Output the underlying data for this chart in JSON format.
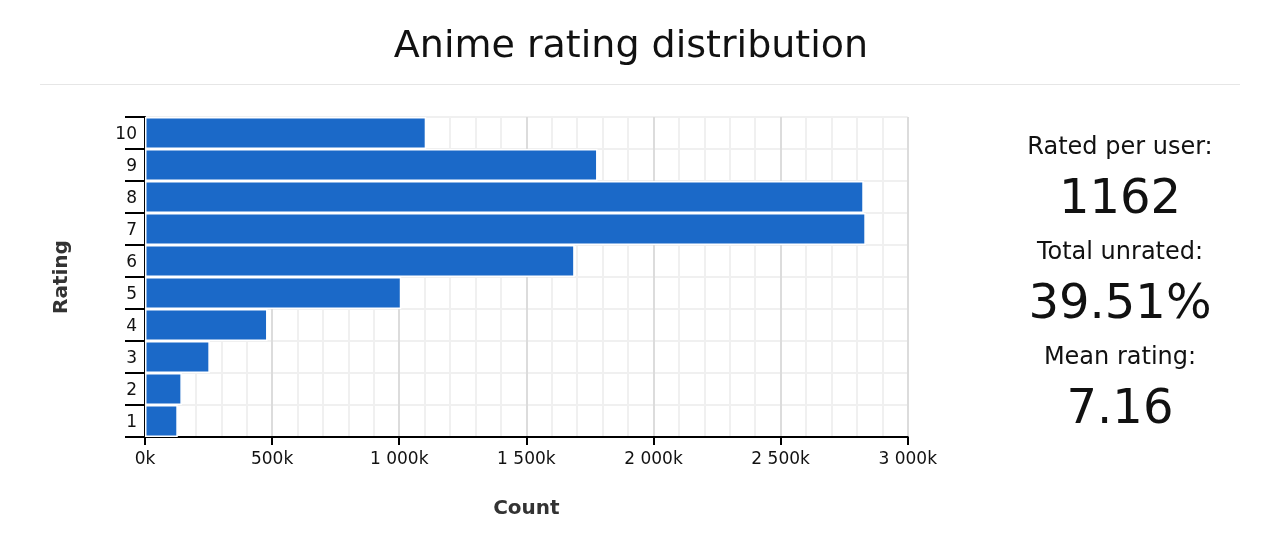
{
  "chart_data": [
    {
      "type": "bar",
      "title": "Anime rating distribution",
      "orientation": "horizontal",
      "xlabel": "Count",
      "ylabel": "Rating",
      "categories": [
        "10",
        "9",
        "8",
        "7",
        "6",
        "5",
        "4",
        "3",
        "2",
        "1"
      ],
      "values": [
        1106000,
        1780000,
        2827000,
        2835000,
        1690000,
        1008000,
        482000,
        255000,
        145000,
        129000
      ],
      "color": "#1b69c8",
      "xlim": [
        0,
        3000000
      ],
      "xticks": [
        {
          "value": 0,
          "label": "0k"
        },
        {
          "value": 500000,
          "label": "500k"
        },
        {
          "value": 1000000,
          "label": "1 000k"
        },
        {
          "value": 1500000,
          "label": "1 500k"
        },
        {
          "value": 2000000,
          "label": "2 000k"
        },
        {
          "value": 2500000,
          "label": "2 500k"
        },
        {
          "value": 3000000,
          "label": "3 000k"
        }
      ],
      "grid": true
    },
    {
      "type": "other",
      "annotations": [
        "Rated per user:",
        "1162",
        "Total unrated:",
        "39.51%",
        "Mean rating:",
        "7.16"
      ]
    }
  ]
}
